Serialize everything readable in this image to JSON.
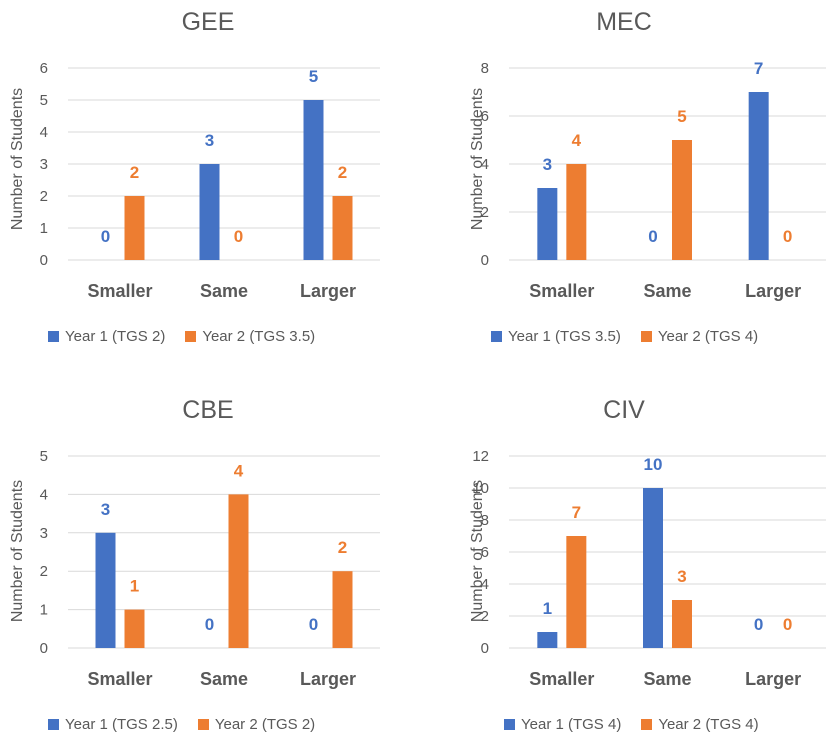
{
  "colors": {
    "year1": "#4472C4",
    "year2": "#ED7D31",
    "axis": "#595959",
    "grid": "#D9D9D9"
  },
  "chart_data": [
    {
      "type": "bar",
      "title": "GEE",
      "ylabel": "Number of Students",
      "categories": [
        "Smaller",
        "Same",
        "Larger"
      ],
      "ylim": [
        0,
        6
      ],
      "yticks": [
        0,
        1,
        2,
        3,
        4,
        5,
        6
      ],
      "series": [
        {
          "name": "Year 1 (TGS 2)",
          "values": [
            0,
            3,
            5
          ]
        },
        {
          "name": "Year 2 (TGS 3.5)",
          "values": [
            2,
            0,
            2
          ]
        }
      ],
      "grid": true,
      "legend": "bottom"
    },
    {
      "type": "bar",
      "title": "MEC",
      "ylabel": "Number of Students",
      "categories": [
        "Smaller",
        "Same",
        "Larger"
      ],
      "ylim": [
        0,
        8
      ],
      "yticks": [
        0,
        2,
        4,
        6,
        8
      ],
      "series": [
        {
          "name": "Year 1 (TGS 3.5)",
          "values": [
            3,
            0,
            7
          ]
        },
        {
          "name": "Year 2 (TGS 4)",
          "values": [
            4,
            5,
            0
          ]
        }
      ],
      "grid": true,
      "legend": "bottom"
    },
    {
      "type": "bar",
      "title": "CBE",
      "ylabel": "Number of Students",
      "categories": [
        "Smaller",
        "Same",
        "Larger"
      ],
      "ylim": [
        0,
        5
      ],
      "yticks": [
        0,
        1,
        2,
        3,
        4,
        5
      ],
      "series": [
        {
          "name": "Year 1 (TGS 2.5)",
          "values": [
            3,
            0,
            0
          ]
        },
        {
          "name": "Year 2 (TGS 2)",
          "values": [
            1,
            4,
            2
          ]
        }
      ],
      "grid": true,
      "legend": "bottom"
    },
    {
      "type": "bar",
      "title": "CIV",
      "ylabel": "Number of Students",
      "categories": [
        "Smaller",
        "Same",
        "Larger"
      ],
      "ylim": [
        0,
        12
      ],
      "yticks": [
        0,
        2,
        4,
        6,
        8,
        10,
        12
      ],
      "series": [
        {
          "name": "Year 1 (TGS 4)",
          "values": [
            1,
            10,
            0
          ]
        },
        {
          "name": "Year 2 (TGS 4)",
          "values": [
            7,
            3,
            0
          ]
        }
      ],
      "grid": true,
      "legend": "bottom"
    }
  ]
}
